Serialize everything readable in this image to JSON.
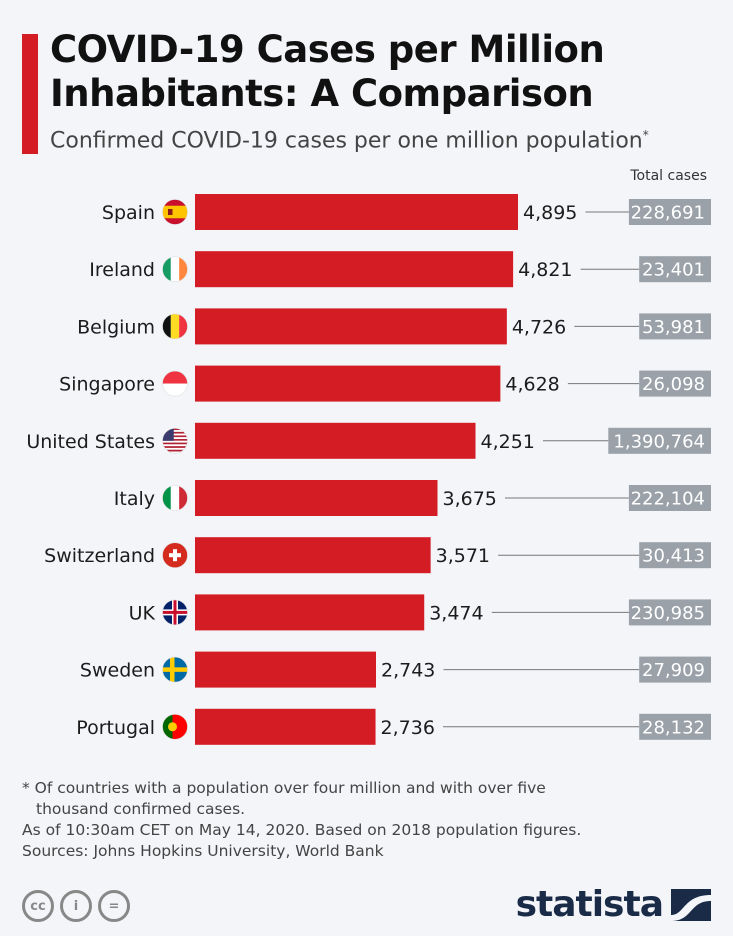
{
  "header": {
    "title_line1": "COVID-19 Cases per Million",
    "title_line2": "Inhabitants: A Comparison",
    "subtitle": "Confirmed COVID-19 cases per one million population",
    "subtitle_mark": "*",
    "total_cases_header": "Total cases"
  },
  "chart_data": {
    "type": "bar",
    "orientation": "horizontal",
    "title": "COVID-19 Cases per Million Inhabitants: A Comparison",
    "subtitle": "Confirmed COVID-19 cases per one million population*",
    "categories": [
      "Spain",
      "Ireland",
      "Belgium",
      "Singapore",
      "United States",
      "Italy",
      "Switzerland",
      "UK",
      "Sweden",
      "Portugal"
    ],
    "flags": [
      "spain-flag",
      "ireland-flag",
      "belgium-flag",
      "singapore-flag",
      "usa-flag",
      "italy-flag",
      "switzerland-flag",
      "uk-flag",
      "sweden-flag",
      "portugal-flag"
    ],
    "values": [
      4895,
      4821,
      4726,
      4628,
      4251,
      3675,
      3571,
      3474,
      2743,
      2736
    ],
    "value_labels": [
      "4,895",
      "4,821",
      "4,726",
      "4,628",
      "4,251",
      "3,675",
      "3,571",
      "3,474",
      "2,743",
      "2,736"
    ],
    "total_cases": [
      228691,
      23401,
      53981,
      26098,
      1390764,
      222104,
      30413,
      230985,
      27909,
      28132
    ],
    "total_cases_labels": [
      "228,691",
      "23,401",
      "53,981",
      "26,098",
      "1,390,764",
      "222,104",
      "30,413",
      "230,985",
      "27,909",
      "28,132"
    ],
    "xlim": [
      0,
      5000
    ],
    "bar_color": "#d41c24",
    "total_box_color": "#9aa1a9",
    "grid": false,
    "legend": "none"
  },
  "footer": {
    "note_line1": "* Of countries with a population over four million and with over five",
    "note_line2": "thousand confirmed cases.",
    "as_of": "As of 10:30am CET on May 14, 2020. Based on 2018 population figures.",
    "sources": "Sources: Johns Hopkins University, World Bank",
    "cc_icons": [
      "cc-icon",
      "by-icon",
      "nd-icon"
    ],
    "cc_labels": [
      "cc",
      "i",
      "="
    ],
    "brand": "statista"
  }
}
